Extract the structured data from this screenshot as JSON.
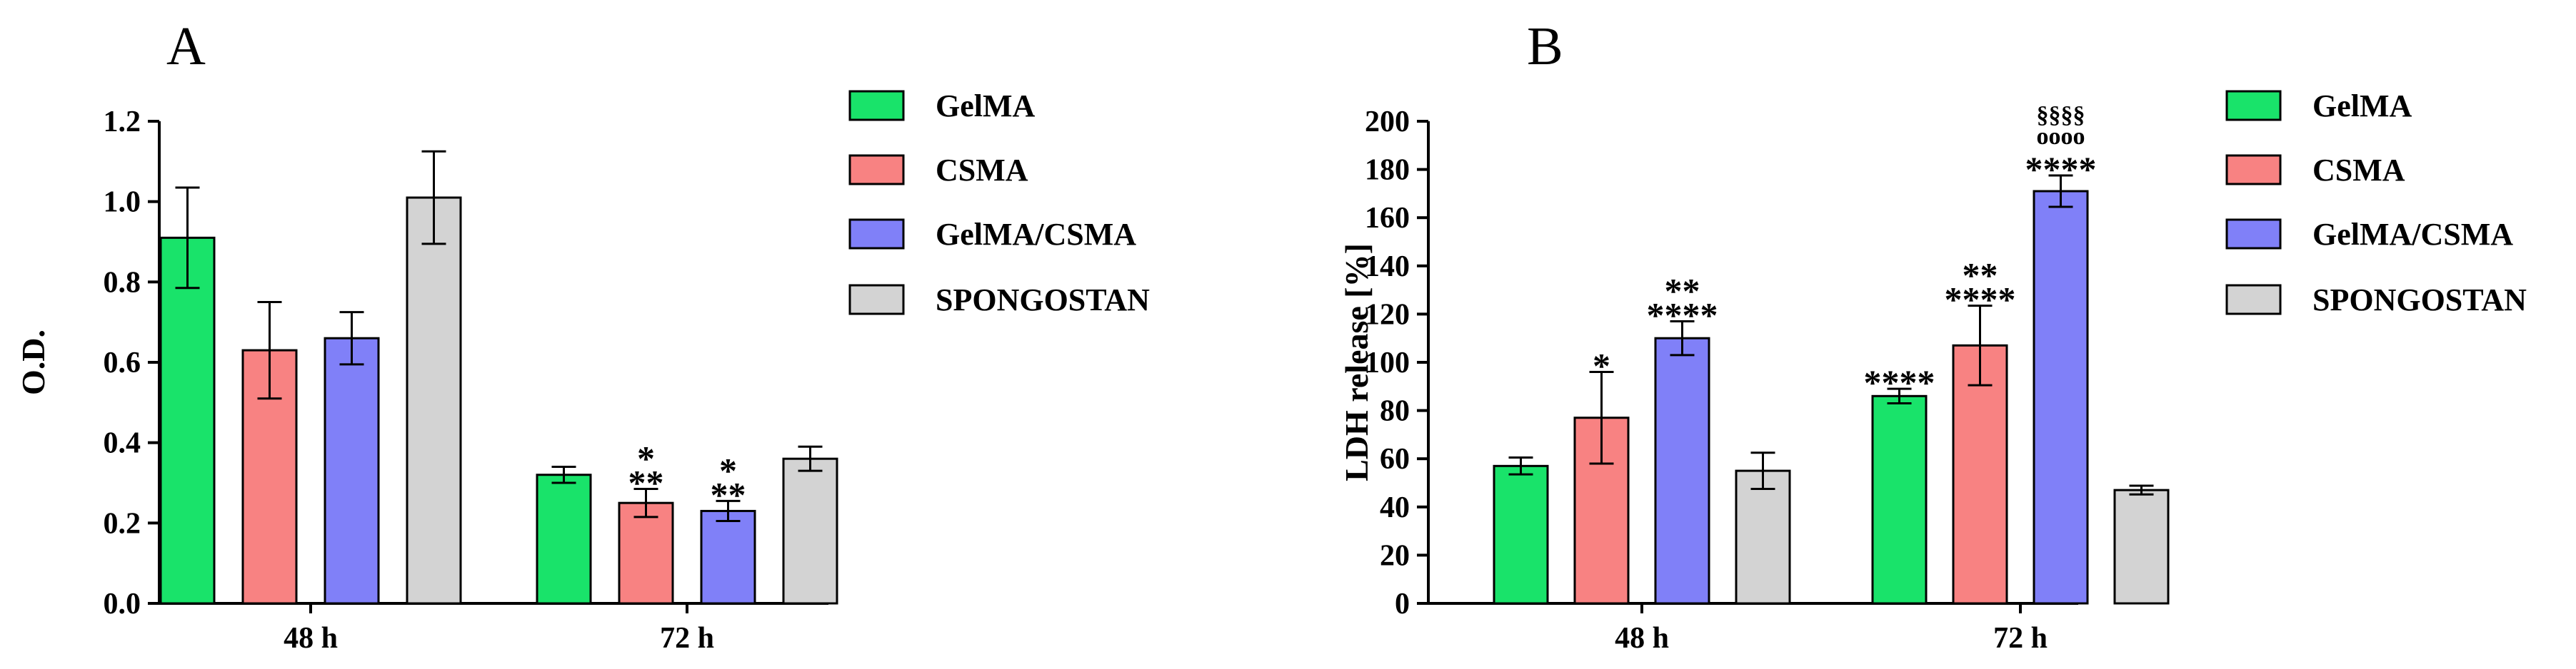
{
  "chart_data": [
    {
      "panel": "A",
      "type": "bar",
      "title": "",
      "xlabel": "",
      "ylabel": "O.D.",
      "ylim": [
        0,
        1.2
      ],
      "yticks": [
        "0.0",
        "0.2",
        "0.4",
        "0.6",
        "0.8",
        "1.0",
        "1.2"
      ],
      "categories": [
        "48 h",
        "72 h"
      ],
      "series": [
        {
          "name": "GelMA",
          "color": "#19e36a",
          "values": [
            0.91,
            0.32
          ],
          "errors": [
            0.125,
            0.02
          ]
        },
        {
          "name": "CSMA",
          "color": "#f88282",
          "values": [
            0.63,
            0.25
          ],
          "errors": [
            0.12,
            0.035
          ]
        },
        {
          "name": "GelMA/CSMA",
          "color": "#8080f8",
          "values": [
            0.66,
            0.23
          ],
          "errors": [
            0.065,
            0.025
          ]
        },
        {
          "name": "SPONGOSTAN",
          "color": "#d3d3d3",
          "values": [
            1.01,
            0.36
          ],
          "errors": [
            0.115,
            0.03
          ]
        }
      ],
      "annotations": [
        {
          "category": "72 h",
          "series": "CSMA",
          "lines": [
            "*",
            "**"
          ]
        },
        {
          "category": "72 h",
          "series": "GelMA/CSMA",
          "lines": [
            "*",
            "**"
          ]
        }
      ]
    },
    {
      "panel": "B",
      "type": "bar",
      "title": "",
      "xlabel": "",
      "ylabel": "LDH release [%]",
      "ylim": [
        0,
        200
      ],
      "yticks": [
        "0",
        "20",
        "40",
        "60",
        "80",
        "100",
        "120",
        "140",
        "160",
        "180",
        "200"
      ],
      "categories": [
        "48 h",
        "72 h"
      ],
      "series": [
        {
          "name": "GelMA",
          "color": "#19e36a",
          "values": [
            57,
            86
          ],
          "errors": [
            3.5,
            3
          ]
        },
        {
          "name": "CSMA",
          "color": "#f88282",
          "values": [
            77,
            107
          ],
          "errors": [
            19,
            16.5
          ]
        },
        {
          "name": "GelMA/CSMA",
          "color": "#8080f8",
          "values": [
            110,
            171
          ],
          "errors": [
            7,
            6.5
          ]
        },
        {
          "name": "SPONGOSTAN",
          "color": "#d3d3d3",
          "values": [
            55,
            47
          ],
          "errors": [
            7.5,
            1.8
          ]
        }
      ],
      "annotations": [
        {
          "category": "48 h",
          "series": "CSMA",
          "lines": [
            "*"
          ]
        },
        {
          "category": "48 h",
          "series": "GelMA/CSMA",
          "lines": [
            "**",
            "****"
          ]
        },
        {
          "category": "72 h",
          "series": "GelMA",
          "lines": [
            "****"
          ]
        },
        {
          "category": "72 h",
          "series": "CSMA",
          "lines": [
            "**",
            "****"
          ]
        },
        {
          "category": "72 h",
          "series": "GelMA/CSMA",
          "lines": [
            "§§§§",
            "oooo",
            "****"
          ]
        }
      ]
    }
  ]
}
